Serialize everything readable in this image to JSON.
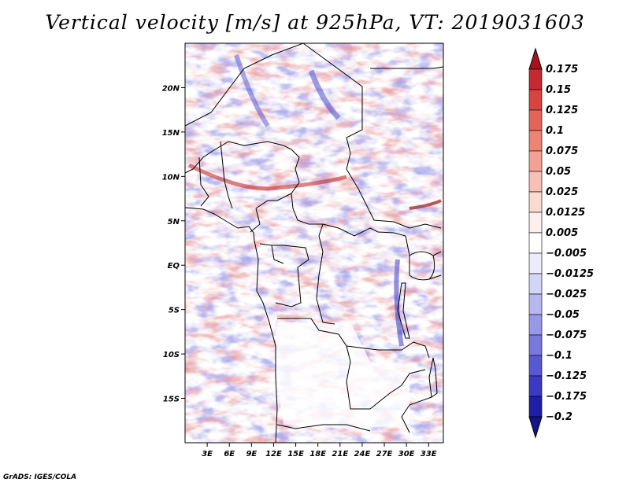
{
  "title": "Vertical velocity [m/s] at 925hPa, VT: 2019031603",
  "footer": "GrADS: IGES/COLA",
  "map": {
    "lon_range": [
      0,
      35
    ],
    "lat_range": [
      -20,
      25
    ],
    "lat_ticks": [
      {
        "value": 20,
        "label": "20N"
      },
      {
        "value": 15,
        "label": "15N"
      },
      {
        "value": 10,
        "label": "10N"
      },
      {
        "value": 5,
        "label": "5N"
      },
      {
        "value": 0,
        "label": "EQ"
      },
      {
        "value": -5,
        "label": "5S"
      },
      {
        "value": -10,
        "label": "10S"
      },
      {
        "value": -15,
        "label": "15S"
      }
    ],
    "lon_ticks": [
      {
        "value": 3,
        "label": "3E"
      },
      {
        "value": 6,
        "label": "6E"
      },
      {
        "value": 9,
        "label": "9E"
      },
      {
        "value": 12,
        "label": "12E"
      },
      {
        "value": 15,
        "label": "15E"
      },
      {
        "value": 18,
        "label": "18E"
      },
      {
        "value": 21,
        "label": "21E"
      },
      {
        "value": 24,
        "label": "24E"
      },
      {
        "value": 27,
        "label": "27E"
      },
      {
        "value": 30,
        "label": "30E"
      },
      {
        "value": 33,
        "label": "33E"
      }
    ]
  },
  "colorbar": {
    "levels": [
      "0.175",
      "0.15",
      "0.125",
      "0.1",
      "0.075",
      "0.05",
      "0.025",
      "0.0125",
      "0.005",
      "−0.005",
      "−0.0125",
      "−0.025",
      "−0.05",
      "−0.075",
      "−0.1",
      "−0.125",
      "−0.175",
      "−0.2"
    ],
    "colors": [
      "#a8121e",
      "#c42a2f",
      "#d84540",
      "#e46458",
      "#ec8474",
      "#f2a294",
      "#f6c0b4",
      "#f9dbd2",
      "#fdf0ec",
      "#ffffff",
      "#ececfb",
      "#d4d4f7",
      "#b8b8f1",
      "#9898e9",
      "#7878de",
      "#5858d2",
      "#3a3ac4",
      "#1e1ea8",
      "#14148c"
    ]
  }
}
